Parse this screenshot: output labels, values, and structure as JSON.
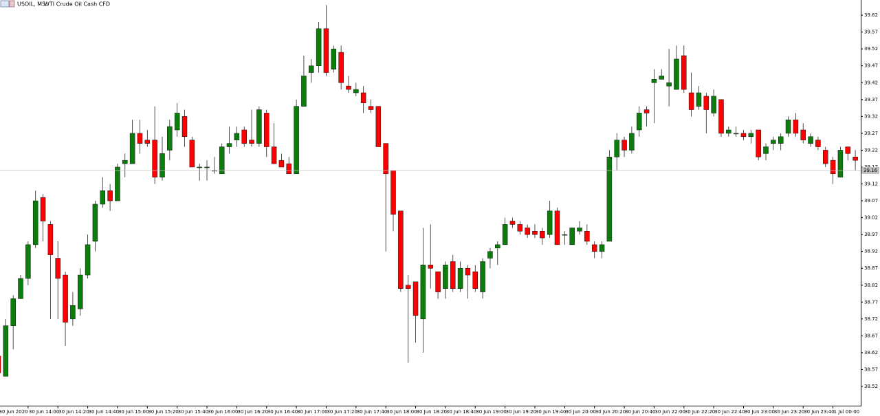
{
  "chart_data": {
    "type": "candlestick",
    "symbol": "USOIL, M5:",
    "title": "WTI Crude Oil Cash CFD",
    "categories": [
      "30 Jun 2020",
      null,
      null,
      null,
      "30 Jun 14:00",
      null,
      null,
      null,
      "30 Jun 14:20",
      null,
      null,
      null,
      "30 Jun 14:40",
      null,
      null,
      null,
      "30 Jun 15:00",
      null,
      null,
      null,
      "30 Jun 15:20",
      null,
      null,
      null,
      "30 Jun 15:40",
      null,
      null,
      null,
      "30 Jun 16:00",
      null,
      null,
      null,
      "30 Jun 16:20",
      null,
      null,
      null,
      "30 Jun 16:40",
      null,
      null,
      null,
      "30 Jun 17:00",
      null,
      null,
      null,
      "30 Jun 17:20",
      null,
      null,
      null,
      "30 Jun 17:40",
      null,
      null,
      null,
      "30 Jun 18:00",
      null,
      null,
      null,
      "30 Jun 18:20",
      null,
      null,
      null,
      "30 Jun 18:40",
      null,
      null,
      null,
      "30 Jun 19:00",
      null,
      null,
      null,
      "30 Jun 19:20",
      null,
      null,
      null,
      "30 Jun 19:40",
      null,
      null,
      null,
      "30 Jun 20:00",
      null,
      null,
      null,
      "30 Jun 20:20",
      null,
      null,
      null,
      "30 Jun 20:40",
      null,
      null,
      null,
      "30 Jun 22:00",
      null,
      null,
      null,
      "30 Jun 22:20",
      null,
      null,
      null,
      "30 Jun 22:40",
      null,
      null,
      null,
      "30 Jun 23:00",
      null,
      null,
      null,
      "30 Jun 23:20",
      null,
      null,
      null,
      "30 Jun 23:40",
      null,
      null,
      null,
      "1 Jul 00:00",
      null,
      null,
      null
    ],
    "open": [
      38.61,
      38.55,
      38.7,
      38.78,
      38.84,
      38.94,
      39.08,
      39.0,
      38.9,
      38.85,
      38.72,
      38.75,
      38.85,
      38.95,
      39.06,
      39.1,
      39.07,
      39.18,
      39.18,
      39.27,
      39.25,
      39.25,
      39.14,
      39.22,
      39.28,
      39.32,
      39.25,
      39.17,
      39.17,
      39.16,
      39.15,
      39.23,
      39.25,
      39.28,
      39.25,
      39.24,
      39.33,
      39.23,
      39.19,
      39.18,
      39.15,
      39.35,
      39.45,
      39.47,
      39.58,
      39.46,
      39.51,
      39.41,
      39.39,
      39.39,
      39.35,
      39.35,
      39.24,
      39.16,
      39.04,
      38.82,
      38.83,
      38.72,
      38.88,
      38.86,
      38.81,
      38.89,
      38.81,
      38.87,
      38.86,
      38.8,
      38.9,
      38.93,
      38.94,
      39.01,
      39.0,
      38.99,
      38.98,
      38.98,
      38.97,
      39.04,
      38.97,
      38.94,
      38.98,
      38.98,
      38.94,
      38.92,
      38.95,
      39.2,
      39.25,
      39.22,
      39.28,
      39.34,
      39.42,
      39.43,
      39.41,
      39.4,
      39.5,
      39.39,
      39.35,
      39.38,
      39.33,
      39.37,
      39.27,
      39.27,
      39.27,
      39.26,
      39.28,
      39.21,
      39.24,
      39.24,
      39.27,
      39.31,
      39.28,
      39.24,
      39.25,
      39.22,
      39.19,
      39.14,
      39.23,
      39.2
    ],
    "high": [
      38.62,
      38.72,
      38.79,
      38.85,
      38.95,
      39.1,
      39.09,
      39.01,
      38.95,
      38.86,
      38.8,
      38.87,
      38.97,
      39.07,
      39.14,
      39.12,
      39.18,
      39.21,
      39.31,
      39.31,
      39.28,
      39.35,
      39.26,
      39.31,
      39.36,
      39.34,
      39.26,
      39.18,
      39.19,
      39.2,
      39.24,
      39.29,
      39.29,
      39.29,
      39.34,
      39.35,
      39.34,
      39.3,
      39.21,
      39.2,
      39.37,
      39.5,
      39.49,
      39.6,
      39.65,
      39.53,
      39.53,
      39.44,
      39.42,
      39.41,
      39.37,
      39.35,
      39.24,
      39.16,
      39.04,
      38.85,
      38.83,
      38.99,
      39.0,
      38.86,
      38.89,
      38.91,
      38.89,
      38.88,
      38.88,
      38.9,
      38.93,
      38.95,
      39.02,
      39.02,
      39.01,
      39.0,
      39.0,
      38.99,
      39.07,
      39.05,
      38.98,
      38.99,
      39.01,
      39.0,
      38.95,
      38.95,
      39.22,
      39.27,
      39.26,
      39.29,
      39.35,
      39.35,
      39.46,
      39.46,
      39.52,
      39.53,
      39.53,
      39.45,
      39.41,
      39.39,
      39.4,
      39.37,
      39.29,
      39.29,
      39.28,
      39.28,
      39.28,
      39.24,
      39.26,
      39.27,
      39.32,
      39.33,
      39.3,
      39.27,
      39.26,
      39.23,
      39.2,
      39.23,
      39.23,
      39.22
    ],
    "low": [
      38.55,
      38.55,
      38.63,
      38.78,
      38.82,
      38.93,
      38.95,
      38.72,
      38.72,
      38.64,
      38.7,
      38.73,
      38.84,
      38.92,
      39.05,
      39.04,
      39.07,
      39.14,
      39.18,
      39.21,
      39.23,
      39.12,
      39.13,
      39.19,
      39.26,
      39.23,
      39.17,
      39.13,
      39.13,
      39.15,
      39.15,
      39.21,
      39.23,
      39.23,
      39.23,
      39.23,
      39.2,
      39.18,
      39.17,
      39.15,
      39.15,
      39.35,
      39.42,
      39.45,
      39.44,
      39.45,
      39.4,
      39.39,
      39.38,
      39.33,
      39.33,
      39.23,
      38.92,
      38.98,
      38.8,
      38.59,
      38.65,
      38.62,
      38.81,
      38.78,
      38.78,
      38.8,
      38.8,
      38.78,
      38.8,
      38.78,
      38.87,
      38.88,
      38.94,
      38.99,
      38.97,
      38.96,
      38.96,
      38.94,
      38.96,
      38.94,
      38.94,
      38.94,
      38.97,
      38.94,
      38.9,
      38.9,
      38.95,
      39.16,
      39.2,
      39.21,
      39.26,
      39.29,
      39.3,
      39.43,
      39.35,
      39.4,
      39.39,
      39.32,
      39.34,
      39.27,
      39.32,
      39.26,
      39.26,
      39.26,
      39.25,
      39.24,
      39.19,
      39.19,
      39.22,
      39.22,
      39.26,
      39.26,
      39.24,
      39.23,
      39.22,
      39.17,
      39.12,
      39.14,
      39.19,
      39.16
    ],
    "close": [
      38.56,
      38.7,
      38.78,
      38.84,
      38.94,
      39.07,
      39.01,
      38.91,
      38.84,
      38.71,
      38.76,
      38.85,
      38.94,
      39.06,
      39.1,
      39.07,
      39.17,
      39.19,
      39.27,
      39.24,
      39.24,
      39.14,
      39.21,
      39.29,
      39.33,
      39.26,
      39.17,
      39.17,
      39.17,
      39.16,
      39.23,
      39.24,
      39.27,
      39.24,
      39.24,
      39.34,
      39.23,
      39.18,
      39.17,
      39.15,
      39.35,
      39.44,
      39.47,
      39.58,
      39.45,
      39.52,
      39.42,
      39.4,
      39.4,
      39.36,
      39.34,
      39.23,
      39.15,
      39.03,
      38.81,
      38.81,
      38.73,
      38.88,
      38.87,
      38.8,
      38.88,
      38.81,
      38.87,
      38.85,
      38.81,
      38.89,
      38.92,
      38.94,
      39.0,
      39.0,
      38.98,
      38.97,
      38.97,
      38.96,
      39.04,
      38.94,
      38.97,
      38.99,
      38.99,
      38.95,
      38.92,
      38.94,
      39.2,
      39.25,
      39.22,
      39.27,
      39.33,
      39.33,
      39.43,
      39.44,
      39.42,
      39.49,
      39.4,
      39.34,
      39.39,
      39.34,
      39.38,
      39.27,
      39.28,
      39.27,
      39.26,
      39.27,
      39.2,
      39.23,
      39.25,
      39.26,
      39.31,
      39.27,
      39.25,
      39.26,
      39.23,
      39.18,
      39.15,
      39.22,
      39.21,
      39.19
    ],
    "up_color": "#0b7d0b",
    "down_color": "#ff0000",
    "ylim": [
      38.463,
      39.665
    ],
    "yticks": [
      39.62,
      39.57,
      39.52,
      39.47,
      39.42,
      39.37,
      39.32,
      39.27,
      39.22,
      39.17,
      39.12,
      39.07,
      39.02,
      38.97,
      38.92,
      38.87,
      38.82,
      38.77,
      38.72,
      38.67,
      38.62,
      38.57,
      38.52
    ],
    "price_line": 39.16,
    "grid": false
  }
}
